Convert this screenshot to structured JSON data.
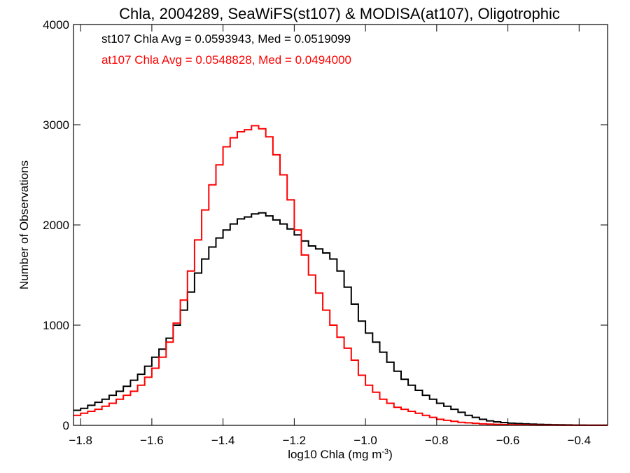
{
  "chart_data": {
    "type": "line",
    "style": "step-histogram",
    "title": "Chla, 2004289, SeaWiFS(st107) & MODISA(at107), Oligotrophic",
    "xlabel": "log10 Chla (mg m",
    "xlabel_sup": "-3",
    "xlabel_close": ")",
    "ylabel": "Number of Observations",
    "xlim": [
      -1.82,
      -0.32
    ],
    "ylim": [
      0,
      4000
    ],
    "xticks": [
      -1.8,
      -1.6,
      -1.4,
      -1.2,
      -1.0,
      -0.8,
      -0.6,
      -0.4
    ],
    "xtick_labels": [
      "−1.8",
      "−1.6",
      "−1.4",
      "−1.2",
      "−1.0",
      "−0.8",
      "−0.6",
      "−0.4"
    ],
    "yticks": [
      0,
      1000,
      2000,
      3000,
      4000
    ],
    "ytick_labels": [
      "0",
      "1000",
      "2000",
      "3000",
      "4000"
    ],
    "grid": false,
    "legend": "top-left",
    "annotations": [
      {
        "text": "st107 Chla Avg = 0.0593943, Med = 0.0519099",
        "color": "#000000"
      },
      {
        "text": "at107 Chla Avg = 0.0548828, Med = 0.0494000",
        "color": "#ff0000"
      }
    ],
    "series": [
      {
        "color": "#000000",
        "x": [
          -1.82,
          -1.8,
          -1.78,
          -1.76,
          -1.74,
          -1.72,
          -1.7,
          -1.68,
          -1.66,
          -1.64,
          -1.62,
          -1.6,
          -1.58,
          -1.56,
          -1.54,
          -1.52,
          -1.5,
          -1.48,
          -1.46,
          -1.44,
          -1.42,
          -1.4,
          -1.38,
          -1.36,
          -1.34,
          -1.32,
          -1.3,
          -1.28,
          -1.26,
          -1.24,
          -1.22,
          -1.2,
          -1.18,
          -1.16,
          -1.14,
          -1.12,
          -1.1,
          -1.08,
          -1.06,
          -1.04,
          -1.02,
          -1.0,
          -0.98,
          -0.96,
          -0.94,
          -0.92,
          -0.9,
          -0.88,
          -0.86,
          -0.84,
          -0.82,
          -0.8,
          -0.78,
          -0.76,
          -0.74,
          -0.72,
          -0.7,
          -0.68,
          -0.66,
          -0.64,
          -0.62,
          -0.6,
          -0.58,
          -0.56,
          -0.54,
          -0.52,
          -0.5,
          -0.48,
          -0.46,
          -0.44,
          -0.42,
          -0.4,
          -0.38,
          -0.36,
          -0.34,
          -0.32
        ],
        "y": [
          150,
          170,
          200,
          230,
          260,
          300,
          340,
          390,
          450,
          510,
          590,
          680,
          760,
          870,
          1000,
          1150,
          1330,
          1520,
          1660,
          1780,
          1870,
          1950,
          2010,
          2060,
          2080,
          2110,
          2120,
          2090,
          2050,
          2010,
          1960,
          1900,
          1840,
          1790,
          1760,
          1720,
          1660,
          1540,
          1380,
          1210,
          1040,
          920,
          830,
          730,
          630,
          540,
          460,
          400,
          350,
          300,
          260,
          220,
          190,
          160,
          130,
          100,
          80,
          60,
          45,
          35,
          28,
          22,
          18,
          15,
          12,
          10,
          8,
          6,
          5,
          4,
          3,
          3,
          2,
          2,
          2,
          2
        ]
      },
      {
        "color": "#ff0000",
        "x": [
          -1.82,
          -1.8,
          -1.78,
          -1.76,
          -1.74,
          -1.72,
          -1.7,
          -1.68,
          -1.66,
          -1.64,
          -1.62,
          -1.6,
          -1.58,
          -1.56,
          -1.54,
          -1.52,
          -1.5,
          -1.48,
          -1.46,
          -1.44,
          -1.42,
          -1.4,
          -1.38,
          -1.36,
          -1.34,
          -1.32,
          -1.3,
          -1.28,
          -1.26,
          -1.24,
          -1.22,
          -1.2,
          -1.18,
          -1.16,
          -1.14,
          -1.12,
          -1.1,
          -1.08,
          -1.06,
          -1.04,
          -1.02,
          -1.0,
          -0.98,
          -0.96,
          -0.94,
          -0.92,
          -0.9,
          -0.88,
          -0.86,
          -0.84,
          -0.82,
          -0.8,
          -0.78,
          -0.76,
          -0.74,
          -0.72,
          -0.7,
          -0.68,
          -0.66,
          -0.64,
          -0.62,
          -0.6,
          -0.58,
          -0.56,
          -0.54,
          -0.52,
          -0.5,
          -0.48,
          -0.46,
          -0.44,
          -0.42,
          -0.4,
          -0.38,
          -0.36,
          -0.34,
          -0.32
        ],
        "y": [
          100,
          120,
          140,
          160,
          190,
          220,
          260,
          300,
          340,
          400,
          480,
          570,
          680,
          830,
          1020,
          1250,
          1540,
          1850,
          2150,
          2400,
          2600,
          2780,
          2870,
          2930,
          2950,
          2990,
          2960,
          2880,
          2700,
          2500,
          2250,
          1950,
          1700,
          1500,
          1320,
          1150,
          1000,
          880,
          770,
          650,
          500,
          400,
          330,
          260,
          220,
          180,
          160,
          140,
          120,
          100,
          80,
          60,
          50,
          40,
          30,
          25,
          20,
          15,
          12,
          10,
          8,
          6,
          5,
          4,
          3,
          2,
          2,
          2,
          1,
          1,
          1,
          1,
          1,
          1,
          1,
          1
        ]
      }
    ]
  }
}
